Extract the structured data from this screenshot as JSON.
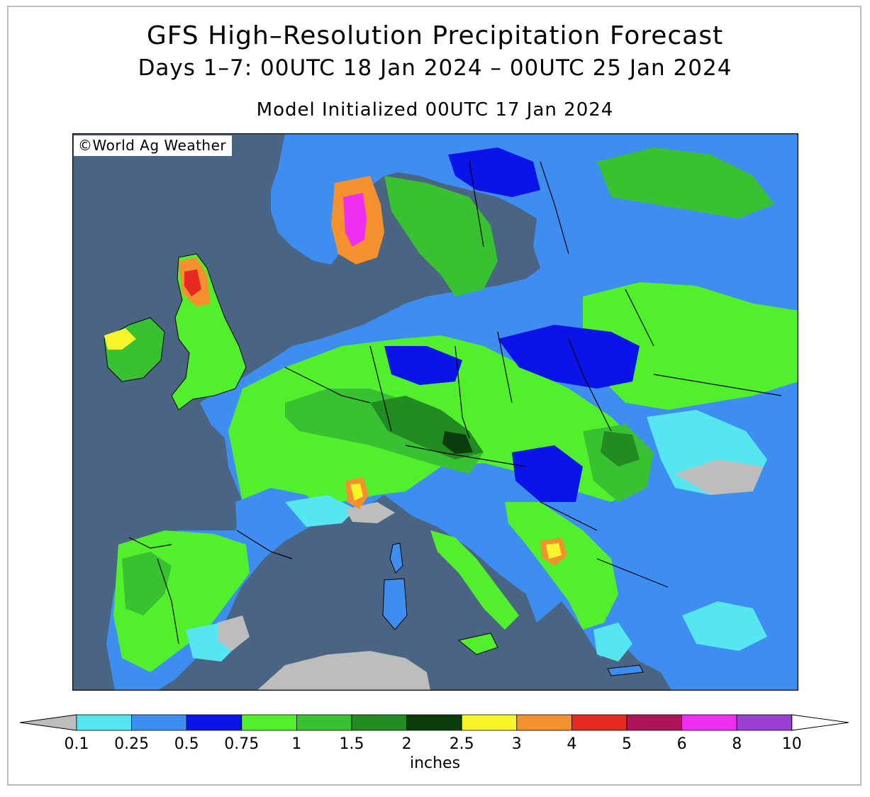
{
  "titles": {
    "main": "GFS High–Resolution Precipitation Forecast",
    "period": "Days 1–7: 00UTC 18 Jan 2024 – 00UTC 25 Jan 2024",
    "init": "Model Initialized 00UTC 17 Jan 2024"
  },
  "credit": "©World Ag Weather",
  "colorbar": {
    "unit": "inches",
    "labels": [
      "0.1",
      "0.25",
      "0.5",
      "0.75",
      "1",
      "1.5",
      "2",
      "2.5",
      "3",
      "4",
      "5",
      "6",
      "8",
      "10"
    ],
    "colors": [
      "#55e6f0",
      "#3d8ef0",
      "#0a14e8",
      "#52f02c",
      "#38c232",
      "#228b22",
      "#0c3d0c",
      "#f7f52a",
      "#f5902e",
      "#e62a22",
      "#b01458",
      "#ee2ef0",
      "#9b3fd2"
    ],
    "under_color": "#bdbdbd",
    "over_color": "#ffffff"
  },
  "map_colors": {
    "water": "#4a6583",
    "dry": "#bdbdbd",
    "borders": "#000000"
  }
}
